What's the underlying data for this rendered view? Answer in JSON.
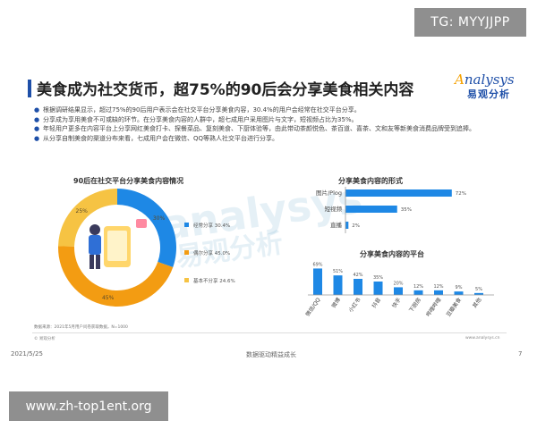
{
  "badges": {
    "tg": "TG: MYYJJPP",
    "url": "www.zh-top1ent.org"
  },
  "slide": {
    "title": "美食成为社交货币，超75%的90后会分享美食相关内容",
    "logo": {
      "en": "nalysys",
      "en_initial": "A",
      "cn": "易观分析"
    },
    "bullets": [
      "根据调研结果显示，超过75%的90后用户表示会在社交平台分享美食内容，30.4%的用户会经常在社交平台分享。",
      "分享成为享用美食不可或缺的环节。在分享美食内容的人群中，超七成用户采用图片与文字，短视频占比为35%。",
      "年轻用户更多在内容平台上分享网红美食打卡、探餐菜品、复刻美食、下厨体验等，由此带动茶颜悦色、茶百道、喜茶、文和友等新美食消费品牌受到追捧。",
      "从分享自制美食的渠道分布来看，七成用户会在微信、QQ等熟人社交平台进行分享。"
    ],
    "watermark": "analysys",
    "watermark_cn": "易观分析",
    "note": "数据来源：2021年5月用户问卷获取数据，N=1000",
    "footer_small_left": "© 易观分析",
    "footer_small_right": "www.analysys.cn",
    "footer_date": "2021/5/25",
    "footer_center": "数据驱动精益成长",
    "page": "7"
  },
  "colors": {
    "blue": "#1e88e5",
    "yellow": "#f6b93b",
    "orange": "#f39c12",
    "title_bar": "#1e4fa8"
  },
  "chart_data": [
    {
      "type": "pie",
      "title": "90后在社交平台分享美食内容情况",
      "categories": [
        "经常分享",
        "偶尔分享",
        "基本不分享"
      ],
      "values": [
        30.4,
        45.0,
        24.6
      ],
      "value_labels": [
        "30.4%",
        "45.0%",
        "24.6%"
      ],
      "ring_labels": [
        "30%",
        "45%",
        "25%"
      ],
      "colors": [
        "#1e88e5",
        "#f39c12",
        "#f6c343"
      ],
      "legend": "right"
    },
    {
      "type": "bar",
      "orientation": "horizontal",
      "title": "分享美食内容的形式",
      "categories": [
        "图片/Plog",
        "短视频",
        "直播"
      ],
      "values": [
        72,
        35,
        2
      ],
      "value_labels": [
        "72%",
        "35%",
        "2%"
      ],
      "xlim": [
        0,
        100
      ],
      "color": "#1e88e5"
    },
    {
      "type": "bar",
      "title": "分享美食内容的平台",
      "categories": [
        "微信/QQ",
        "微博",
        "小红书",
        "抖音",
        "快手",
        "下厨房",
        "哔哩哔哩",
        "豆瓣美食",
        "其他"
      ],
      "values": [
        69,
        51,
        42,
        35,
        20,
        12,
        12,
        9,
        5
      ],
      "value_labels": [
        "69%",
        "51%",
        "42%",
        "35%",
        "20%",
        "12%",
        "12%",
        "9%",
        "5%"
      ],
      "ylim": [
        0,
        100
      ],
      "color": "#1e88e5"
    }
  ]
}
